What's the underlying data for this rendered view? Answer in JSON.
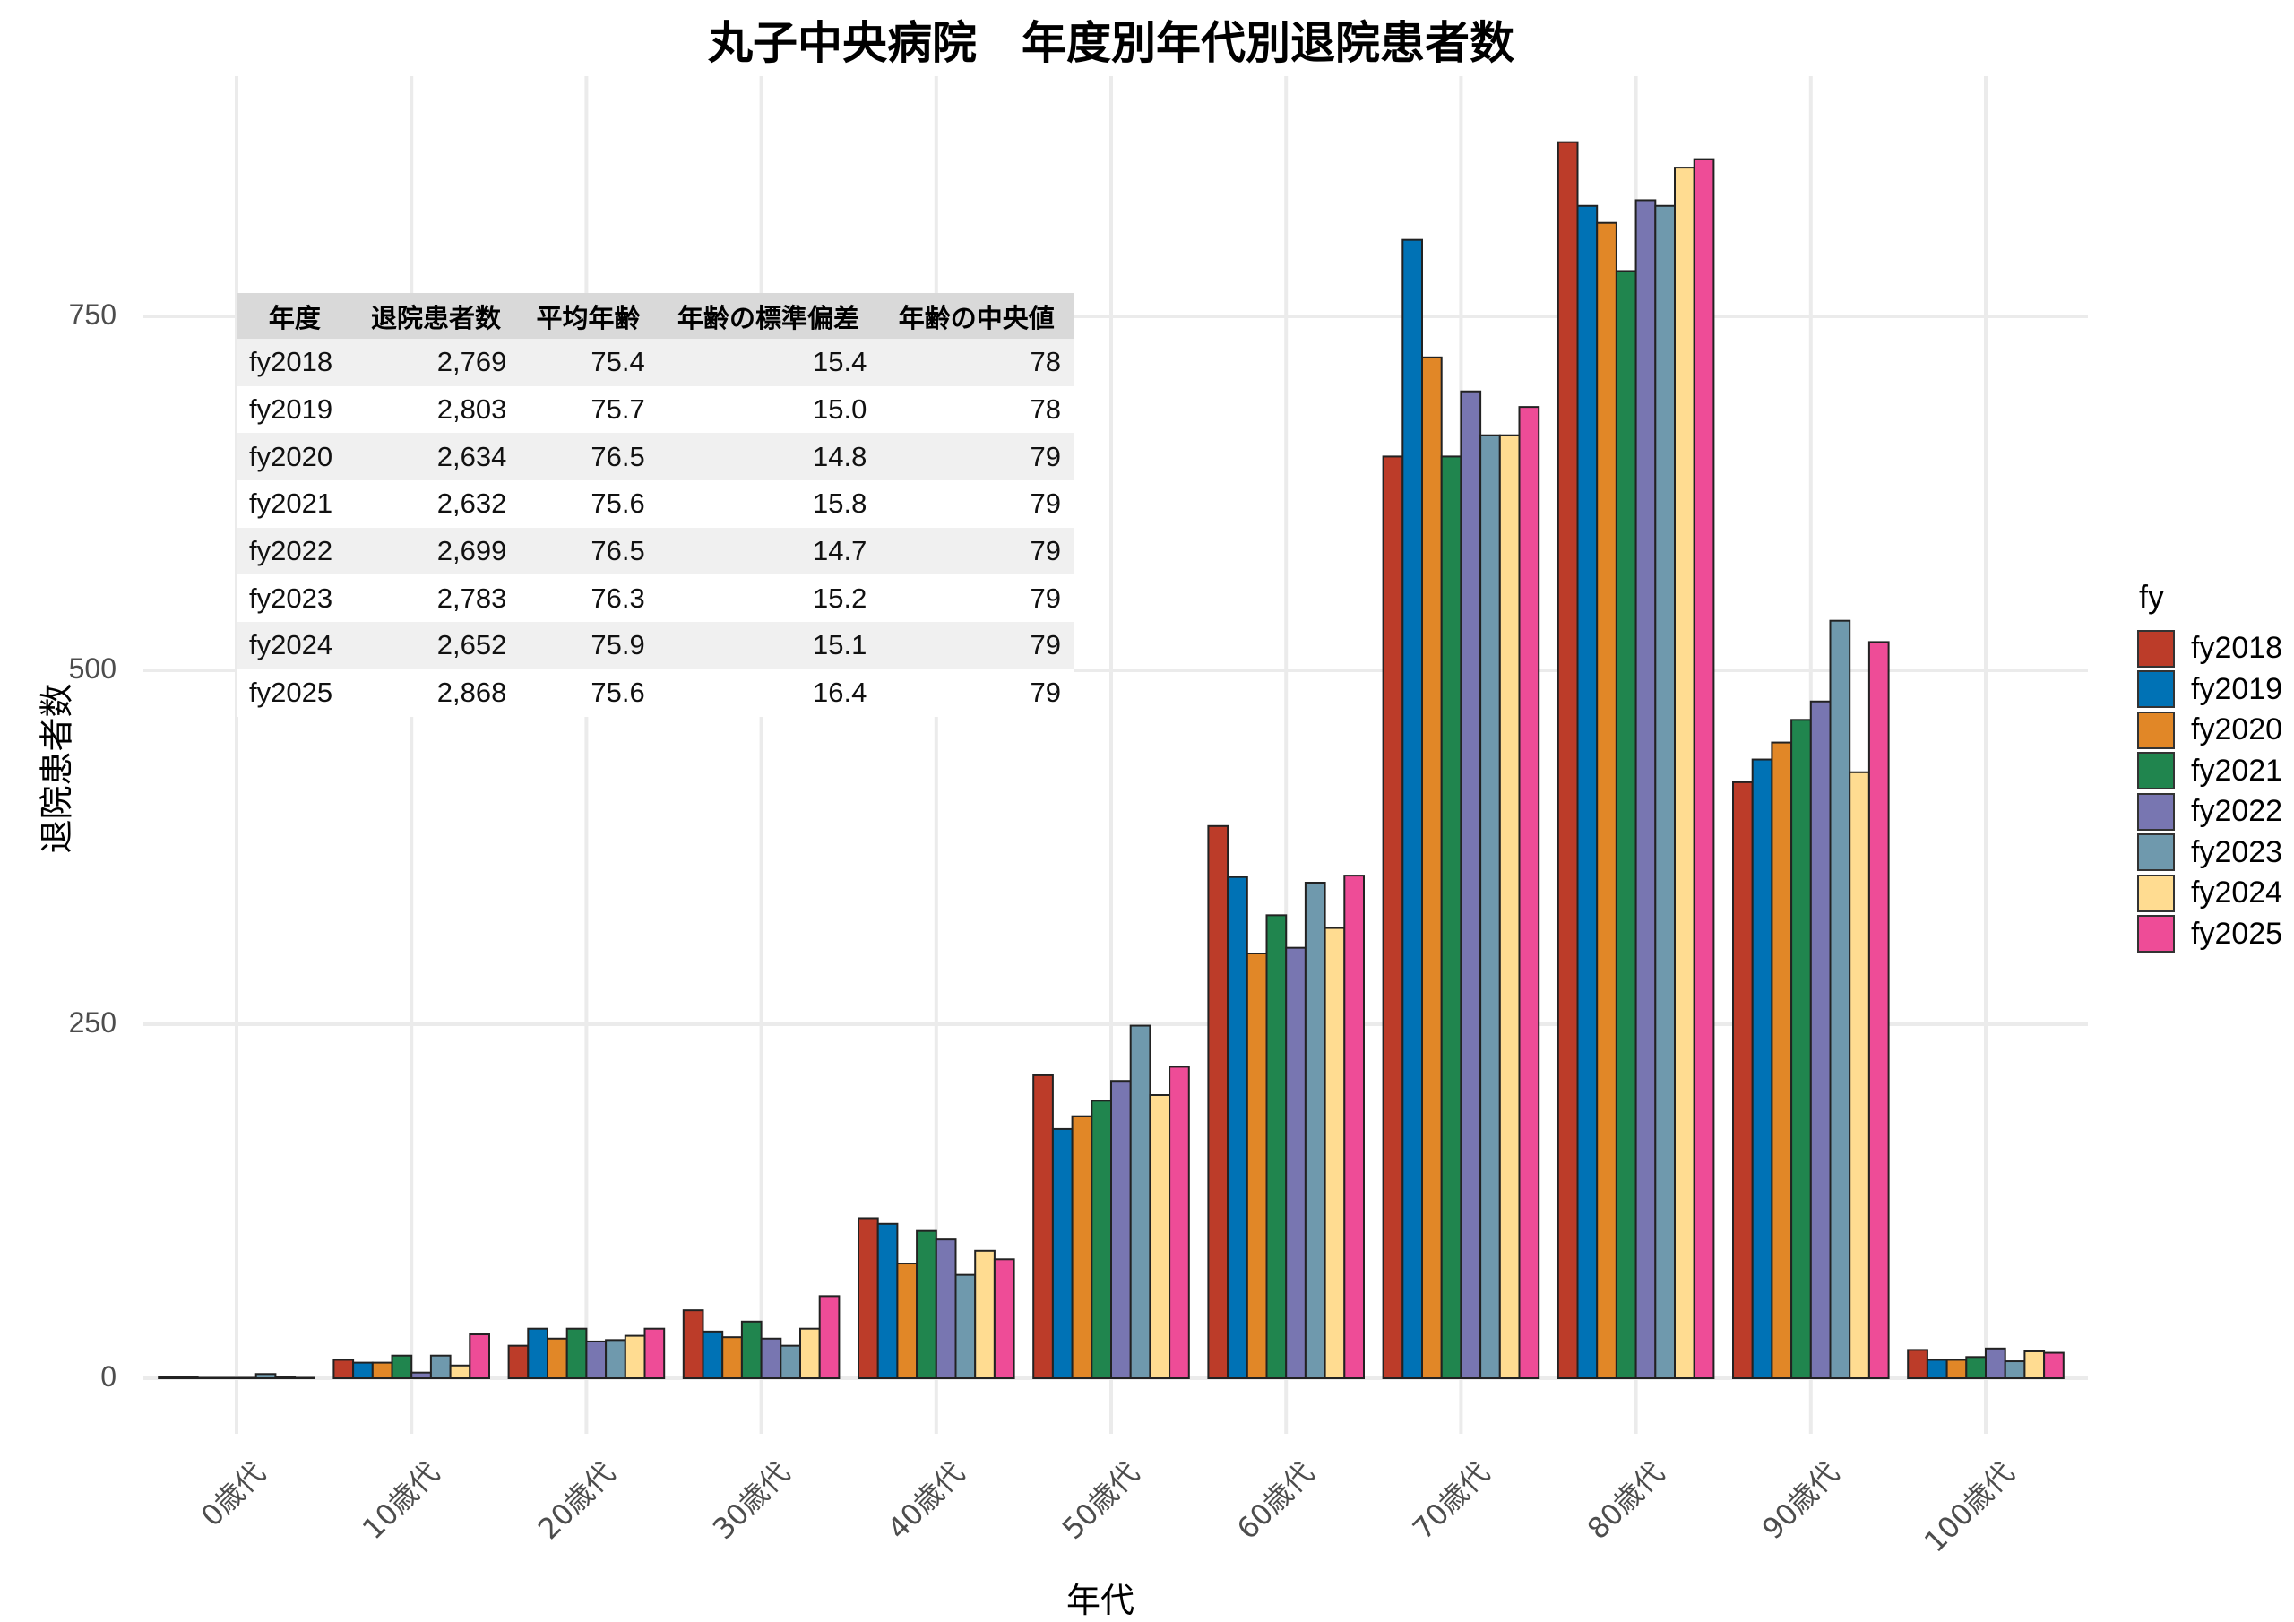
{
  "chart_data": {
    "type": "bar",
    "title": "丸子中央病院　年度別年代別退院患者数",
    "xlabel": "年代",
    "ylabel": "退院患者数",
    "ylim": [
      -25,
      920
    ],
    "yticks": [
      0,
      250,
      500,
      750
    ],
    "grid": true,
    "legend_title": "fy",
    "legend_position": "right",
    "categories": [
      "0歳代",
      "10歳代",
      "20歳代",
      "30歳代",
      "40歳代",
      "50歳代",
      "60歳代",
      "70歳代",
      "80歳代",
      "90歳代",
      "100歳代"
    ],
    "series": [
      {
        "name": "fy2018",
        "color": "#BC3C29",
        "values": [
          1,
          13,
          23,
          48,
          113,
          214,
          390,
          651,
          873,
          421,
          20
        ]
      },
      {
        "name": "fy2019",
        "color": "#0072B5",
        "values": [
          1,
          11,
          35,
          33,
          109,
          176,
          354,
          804,
          828,
          437,
          13
        ]
      },
      {
        "name": "fy2020",
        "color": "#E18727",
        "values": [
          0,
          11,
          28,
          29,
          81,
          185,
          300,
          721,
          816,
          449,
          13
        ]
      },
      {
        "name": "fy2021",
        "color": "#20854E",
        "values": [
          0,
          16,
          35,
          40,
          104,
          196,
          327,
          651,
          782,
          465,
          15
        ]
      },
      {
        "name": "fy2022",
        "color": "#7876B1",
        "values": [
          0,
          4,
          26,
          28,
          98,
          210,
          304,
          697,
          832,
          478,
          21
        ]
      },
      {
        "name": "fy2023",
        "color": "#6F99AD",
        "values": [
          3,
          16,
          27,
          23,
          73,
          249,
          350,
          666,
          828,
          535,
          12
        ]
      },
      {
        "name": "fy2024",
        "color": "#FFDC91",
        "values": [
          1,
          9,
          30,
          35,
          90,
          200,
          318,
          666,
          855,
          428,
          19
        ]
      },
      {
        "name": "fy2025",
        "color": "#EE4C97",
        "values": [
          0,
          31,
          35,
          58,
          84,
          220,
          355,
          686,
          861,
          520,
          18
        ]
      }
    ],
    "table": {
      "headers": [
        "年度",
        "退院患者数",
        "平均年齢",
        "年齢の標準偏差",
        "年齢の中央値"
      ],
      "rows": [
        [
          "fy2018",
          "2,769",
          "75.4",
          "15.4",
          "78"
        ],
        [
          "fy2019",
          "2,803",
          "75.7",
          "15.0",
          "78"
        ],
        [
          "fy2020",
          "2,634",
          "76.5",
          "14.8",
          "79"
        ],
        [
          "fy2021",
          "2,632",
          "75.6",
          "15.8",
          "79"
        ],
        [
          "fy2022",
          "2,699",
          "76.5",
          "14.7",
          "79"
        ],
        [
          "fy2023",
          "2,783",
          "76.3",
          "15.2",
          "79"
        ],
        [
          "fy2024",
          "2,652",
          "75.9",
          "15.1",
          "79"
        ],
        [
          "fy2025",
          "2,868",
          "75.6",
          "16.4",
          "79"
        ]
      ]
    }
  }
}
